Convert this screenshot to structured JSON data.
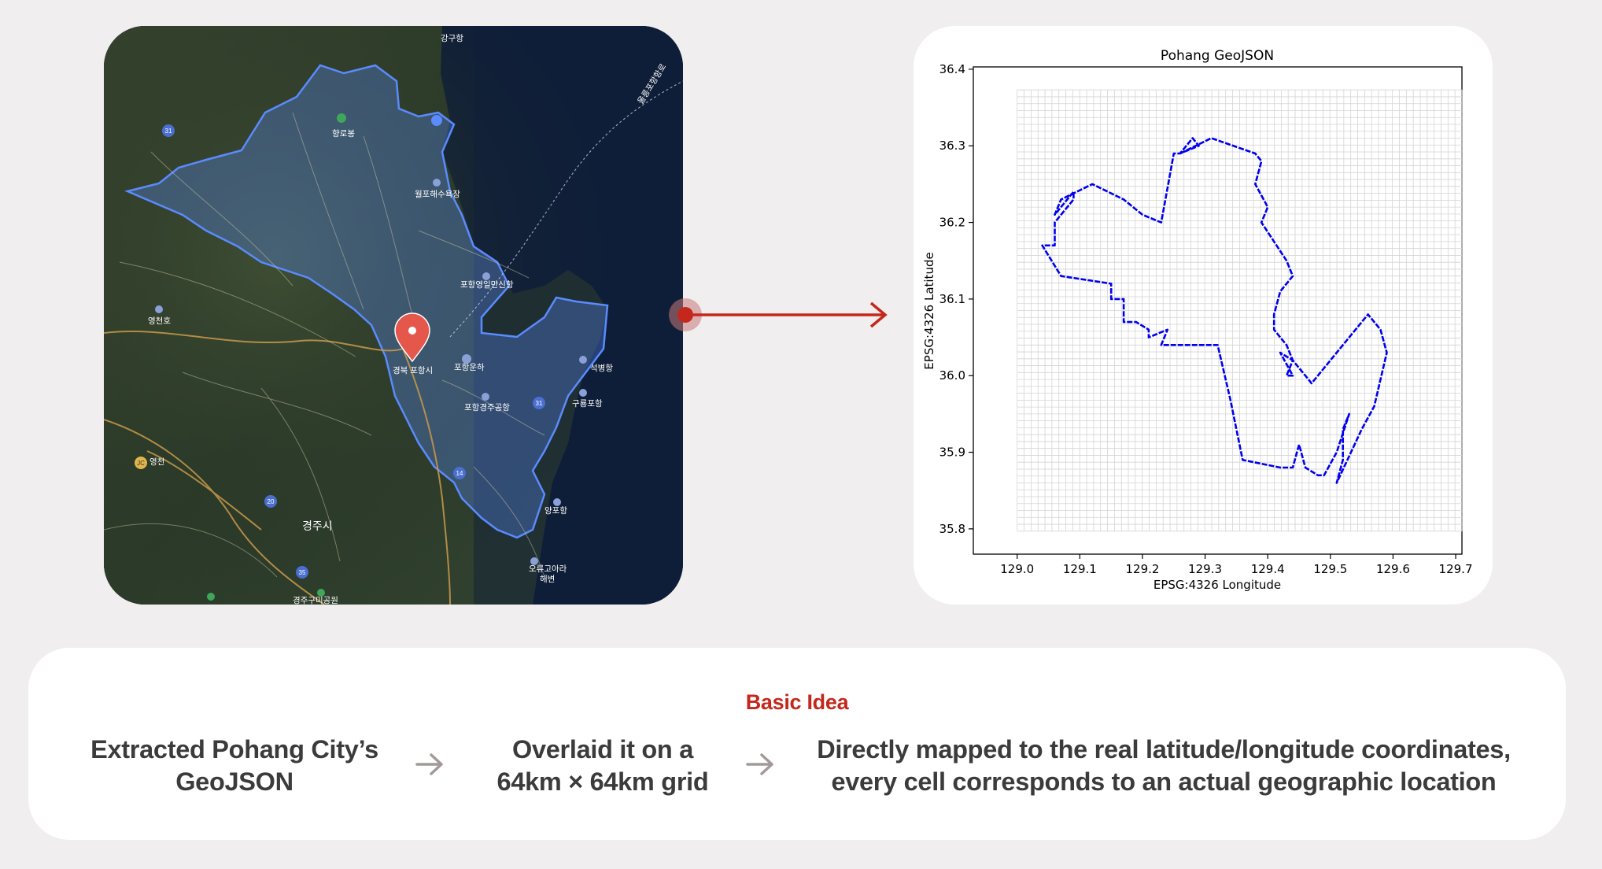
{
  "map": {
    "labels": {
      "gangguhang": "강구항",
      "hyangnobong": "향로봉",
      "wolpo": "월포해수욕장",
      "pohang_yeongil": "포항영일만신항",
      "yeongcheonho": "영천호",
      "pohang_city": "경북 포항시",
      "pohang_canal": "포항운하",
      "seokbyeong": "석병항",
      "guryongpo": "구룡포항",
      "pohang_airport": "포항경주공항",
      "yeongcheon": "영천",
      "gyeongju": "경주시",
      "yangpo": "양포항",
      "oryugo": "오류고아라",
      "haebyeon": "해변",
      "ferry_route": "울릉포항항로",
      "road_31a": "31",
      "road_31b": "31",
      "road_14": "14",
      "road_20": "20",
      "road_35": "35",
      "road_jc": "JC",
      "gyeongju_bottom": "경주구미공원"
    }
  },
  "chart_data": {
    "type": "line",
    "title": "Pohang GeoJSON",
    "xlabel": "EPSG:4326 Longitude",
    "ylabel": "EPSG:4326 Latitude",
    "xlim": [
      128.93,
      129.71
    ],
    "ylim": [
      35.767,
      36.403
    ],
    "xticks": [
      "129.0",
      "129.1",
      "129.2",
      "129.3",
      "129.4",
      "129.5",
      "129.6",
      "129.7"
    ],
    "yticks": [
      "35.8",
      "35.9",
      "36.0",
      "36.1",
      "36.2",
      "36.3",
      "36.4"
    ],
    "xtick_values": [
      129.0,
      129.1,
      129.2,
      129.3,
      129.4,
      129.5,
      129.6,
      129.7
    ],
    "ytick_values": [
      35.8,
      35.9,
      36.0,
      36.1,
      36.2,
      36.3,
      36.4
    ],
    "grid": {
      "x_range": [
        129.0,
        129.71
      ],
      "y_range": [
        35.797,
        36.373
      ],
      "cells": 64
    },
    "series": [
      {
        "color": "#0000ee",
        "x": [
          129.26,
          129.31,
          129.38,
          129.39,
          129.38,
          129.4,
          129.39,
          129.43,
          129.44,
          129.42,
          129.41,
          129.41,
          129.42,
          129.43,
          129.44,
          129.43,
          129.44,
          129.42,
          129.44,
          129.46,
          129.47,
          129.51,
          129.56,
          129.58,
          129.59,
          129.57,
          129.55,
          129.51,
          129.52,
          129.52,
          129.53,
          129.51,
          129.49,
          129.48,
          129.46,
          129.45,
          129.44,
          129.42,
          129.36,
          129.34,
          129.32,
          129.28,
          129.23,
          129.24,
          129.21,
          129.21,
          129.19,
          129.17,
          129.17,
          129.15,
          129.15,
          129.07,
          129.04,
          129.06,
          129.06,
          129.07,
          129.09,
          129.09,
          129.06,
          129.07,
          129.12,
          129.17,
          129.2,
          129.23,
          129.25,
          129.26,
          129.29,
          129.28,
          129.26
        ],
        "y": [
          36.29,
          36.31,
          36.29,
          36.28,
          36.25,
          36.22,
          36.2,
          36.15,
          36.13,
          36.11,
          36.08,
          36.06,
          36.05,
          36.04,
          36.02,
          36.0,
          36.0,
          36.03,
          36.02,
          36.0,
          35.99,
          36.03,
          36.08,
          36.06,
          36.03,
          35.96,
          35.93,
          35.86,
          35.89,
          35.93,
          35.95,
          35.9,
          35.87,
          35.87,
          35.88,
          35.91,
          35.88,
          35.88,
          35.89,
          35.97,
          36.04,
          36.04,
          36.04,
          36.06,
          36.05,
          36.06,
          36.07,
          36.07,
          36.1,
          36.1,
          36.12,
          36.13,
          36.17,
          36.17,
          36.2,
          36.21,
          36.23,
          36.24,
          36.21,
          36.23,
          36.25,
          36.23,
          36.21,
          36.2,
          36.29,
          36.29,
          36.3,
          36.31,
          36.29
        ]
      }
    ]
  },
  "idea": {
    "title": "Basic Idea",
    "step1_line1": "Extracted Pohang City’s",
    "step1_line2": "GeoJSON",
    "step2_line1": "Overlaid it on a",
    "step2_line2": "64km × 64km grid",
    "step3_line1": "Directly mapped to the real latitude/longitude coordinates,",
    "step3_line2": "every cell corresponds to an actual geographic location"
  },
  "colors": {
    "accent": "#c4271c",
    "outline": "#0000ee",
    "region_highlight": "#5a8bff",
    "background": "#f0eeee"
  }
}
